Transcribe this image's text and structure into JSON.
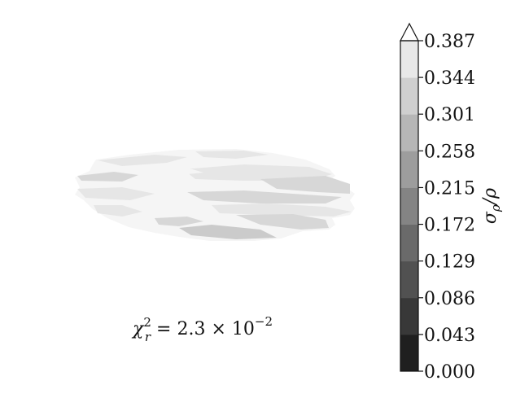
{
  "chart_data": {
    "type": "heatmap",
    "title": "",
    "colormap": "gray",
    "colorbar": {
      "levels": [
        "0.000",
        "0.043",
        "0.086",
        "0.129",
        "0.172",
        "0.215",
        "0.258",
        "0.301",
        "0.344",
        "0.387"
      ],
      "range": [
        0.0,
        0.387
      ],
      "extend": "max",
      "orientation": "vertical",
      "placement": "right",
      "label_math": {
        "main": "σ",
        "sub": "ρ",
        "rest": "/ρ"
      }
    },
    "annotation": {
      "chi": "χ",
      "sub": "r",
      "sup": "2",
      "rest": " = 2.3 × 10",
      "exp": "−2"
    },
    "field_note_levels": [
      0.301,
      0.344,
      0.387
    ],
    "axes_visible": false
  }
}
